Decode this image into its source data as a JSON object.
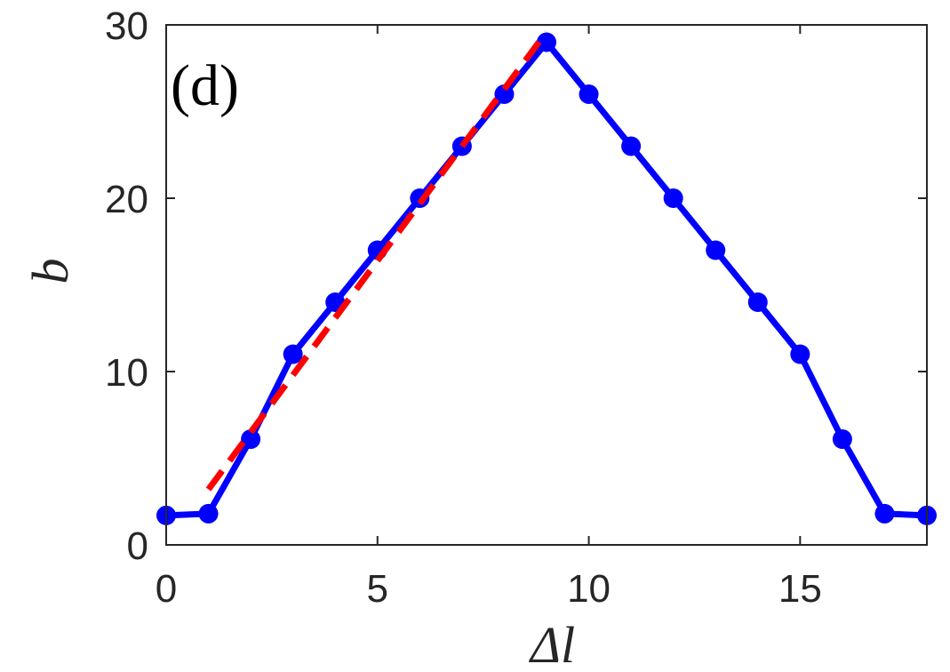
{
  "chart_data": {
    "type": "line",
    "panel_label": "(d)",
    "xlabel": "Δl",
    "ylabel": "b",
    "xlim": [
      0,
      18
    ],
    "ylim": [
      0,
      30
    ],
    "x_ticks": [
      0,
      5,
      10,
      15
    ],
    "y_ticks": [
      0,
      10,
      20,
      30
    ],
    "grid": false,
    "series": [
      {
        "style": "solid-markers",
        "color": "#0000ff",
        "x": [
          0,
          1,
          2,
          3,
          4,
          5,
          6,
          7,
          8,
          9,
          10,
          11,
          12,
          13,
          14,
          15,
          16,
          17,
          18
        ],
        "values": [
          1.7,
          1.8,
          6.1,
          11,
          14,
          17,
          20,
          23,
          26,
          29,
          26,
          23,
          20,
          17,
          14,
          11,
          6.1,
          1.8,
          1.7
        ]
      },
      {
        "style": "dashed",
        "color": "#ff0000",
        "x": [
          1,
          9
        ],
        "values": [
          3.2,
          29.6
        ]
      }
    ]
  }
}
